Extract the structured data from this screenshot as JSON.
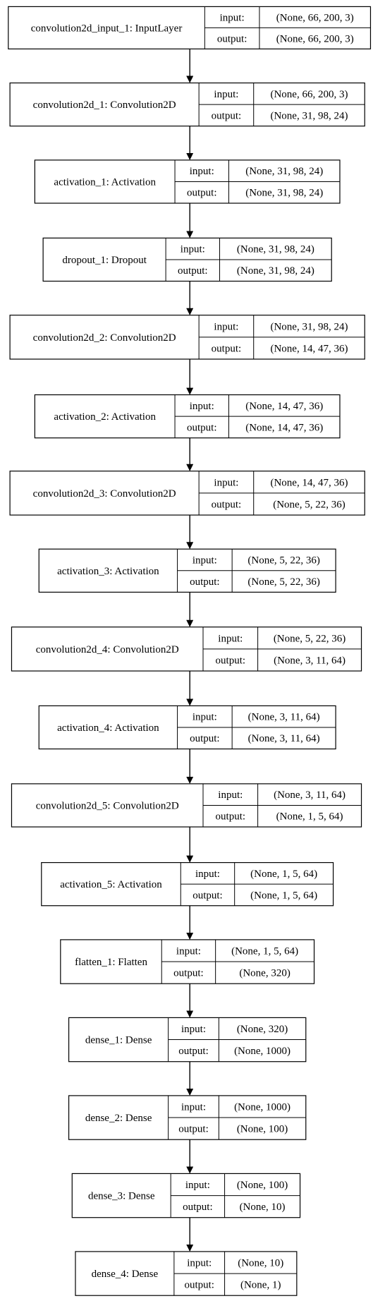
{
  "nodes": [
    {
      "label": "convolution2d_input_1: InputLayer",
      "in_label": "input:",
      "out_label": "output:",
      "in_shape": "(None, 66, 200, 3)",
      "out_shape": "(None, 66, 200, 3)"
    },
    {
      "label": "convolution2d_1: Convolution2D",
      "in_label": "input:",
      "out_label": "output:",
      "in_shape": "(None, 66, 200, 3)",
      "out_shape": "(None, 31, 98, 24)"
    },
    {
      "label": "activation_1: Activation",
      "in_label": "input:",
      "out_label": "output:",
      "in_shape": "(None, 31, 98, 24)",
      "out_shape": "(None, 31, 98, 24)"
    },
    {
      "label": "dropout_1: Dropout",
      "in_label": "input:",
      "out_label": "output:",
      "in_shape": "(None, 31, 98, 24)",
      "out_shape": "(None, 31, 98, 24)"
    },
    {
      "label": "convolution2d_2: Convolution2D",
      "in_label": "input:",
      "out_label": "output:",
      "in_shape": "(None, 31, 98, 24)",
      "out_shape": "(None, 14, 47, 36)"
    },
    {
      "label": "activation_2: Activation",
      "in_label": "input:",
      "out_label": "output:",
      "in_shape": "(None, 14, 47, 36)",
      "out_shape": "(None, 14, 47, 36)"
    },
    {
      "label": "convolution2d_3: Convolution2D",
      "in_label": "input:",
      "out_label": "output:",
      "in_shape": "(None, 14, 47, 36)",
      "out_shape": "(None, 5, 22, 36)"
    },
    {
      "label": "activation_3: Activation",
      "in_label": "input:",
      "out_label": "output:",
      "in_shape": "(None, 5, 22, 36)",
      "out_shape": "(None, 5, 22, 36)"
    },
    {
      "label": "convolution2d_4: Convolution2D",
      "in_label": "input:",
      "out_label": "output:",
      "in_shape": "(None, 5, 22, 36)",
      "out_shape": "(None, 3, 11, 64)"
    },
    {
      "label": "activation_4: Activation",
      "in_label": "input:",
      "out_label": "output:",
      "in_shape": "(None, 3, 11, 64)",
      "out_shape": "(None, 3, 11, 64)"
    },
    {
      "label": "convolution2d_5: Convolution2D",
      "in_label": "input:",
      "out_label": "output:",
      "in_shape": "(None, 3, 11, 64)",
      "out_shape": "(None, 1, 5, 64)"
    },
    {
      "label": "activation_5: Activation",
      "in_label": "input:",
      "out_label": "output:",
      "in_shape": "(None, 1, 5, 64)",
      "out_shape": "(None, 1, 5, 64)"
    },
    {
      "label": "flatten_1: Flatten",
      "in_label": "input:",
      "out_label": "output:",
      "in_shape": "(None, 1, 5, 64)",
      "out_shape": "(None, 320)"
    },
    {
      "label": "dense_1: Dense",
      "in_label": "input:",
      "out_label": "output:",
      "in_shape": "(None, 320)",
      "out_shape": "(None, 1000)"
    },
    {
      "label": "dense_2: Dense",
      "in_label": "input:",
      "out_label": "output:",
      "in_shape": "(None, 1000)",
      "out_shape": "(None, 100)"
    },
    {
      "label": "dense_3: Dense",
      "in_label": "input:",
      "out_label": "output:",
      "in_shape": "(None, 100)",
      "out_shape": "(None, 10)"
    },
    {
      "label": "dense_4: Dense",
      "in_label": "input:",
      "out_label": "output:",
      "in_shape": "(None, 10)",
      "out_shape": "(None, 1)"
    }
  ]
}
